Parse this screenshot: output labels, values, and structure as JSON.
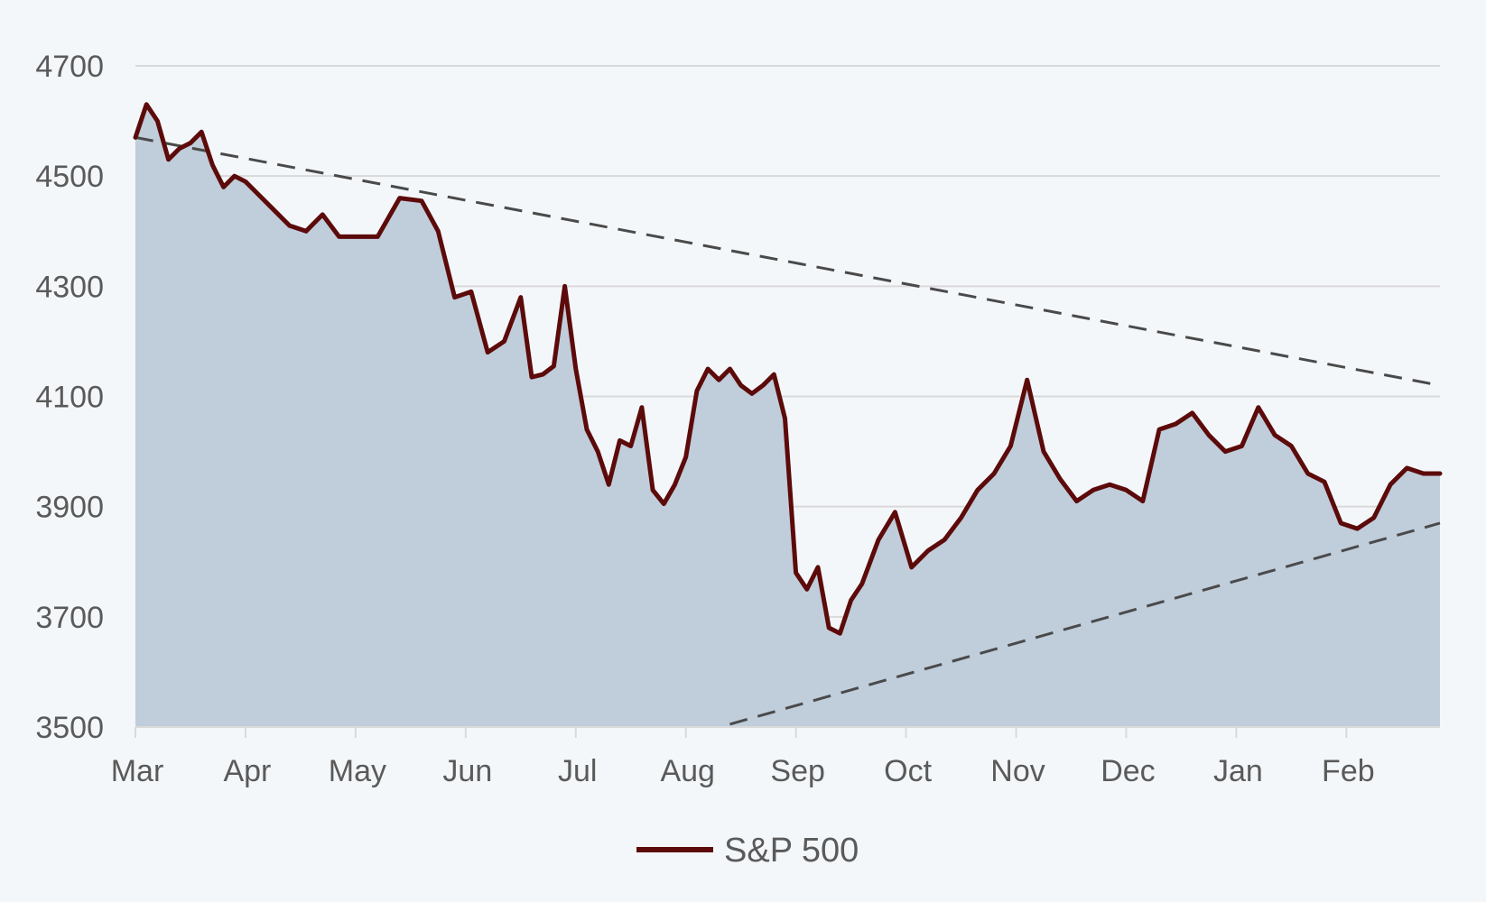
{
  "chart_data": {
    "type": "area",
    "title": "",
    "xlabel": "",
    "ylabel": "",
    "ylim": [
      3500,
      4700
    ],
    "yticks": [
      3500,
      3700,
      3900,
      4100,
      4300,
      4500,
      4700
    ],
    "xticks": [
      "Mar",
      "Apr",
      "May",
      "Jun",
      "Jul",
      "Aug",
      "Sep",
      "Oct",
      "Nov",
      "Dec",
      "Jan",
      "Feb"
    ],
    "grid": true,
    "legend_position": "bottom",
    "colors": {
      "line": "#5c0a0a",
      "fill": "#c0cddb",
      "grid": "#d9d9d9",
      "trend": "#4a4a4a",
      "background": "#f4f7fa"
    },
    "series": [
      {
        "name": "S&P 500",
        "x": [
          0,
          0.1,
          0.2,
          0.3,
          0.4,
          0.5,
          0.6,
          0.7,
          0.8,
          0.9,
          1.0,
          1.1,
          1.25,
          1.4,
          1.55,
          1.7,
          1.85,
          2.0,
          2.2,
          2.4,
          2.6,
          2.75,
          2.9,
          3.05,
          3.2,
          3.35,
          3.5,
          3.6,
          3.7,
          3.8,
          3.9,
          4.0,
          4.1,
          4.2,
          4.3,
          4.4,
          4.5,
          4.6,
          4.7,
          4.8,
          4.9,
          5.0,
          5.1,
          5.2,
          5.3,
          5.4,
          5.5,
          5.6,
          5.7,
          5.8,
          5.9,
          6.0,
          6.1,
          6.2,
          6.3,
          6.4,
          6.5,
          6.6,
          6.75,
          6.9,
          7.05,
          7.2,
          7.35,
          7.5,
          7.65,
          7.8,
          7.95,
          8.1,
          8.25,
          8.4,
          8.55,
          8.7,
          8.85,
          9.0,
          9.15,
          9.3,
          9.45,
          9.6,
          9.75,
          9.9,
          10.05,
          10.2,
          10.35,
          10.5,
          10.65,
          10.8,
          10.95,
          11.1,
          11.25,
          11.4,
          11.55,
          11.7,
          11.85
        ],
        "values": [
          4570,
          4630,
          4600,
          4530,
          4550,
          4560,
          4580,
          4520,
          4480,
          4500,
          4490,
          4470,
          4440,
          4410,
          4400,
          4430,
          4390,
          4390,
          4390,
          4460,
          4455,
          4400,
          4280,
          4290,
          4180,
          4200,
          4280,
          4135,
          4140,
          4155,
          4300,
          4150,
          4040,
          4000,
          3940,
          4020,
          4010,
          4080,
          3930,
          3905,
          3940,
          3990,
          4110,
          4150,
          4130,
          4150,
          4120,
          4105,
          4120,
          4140,
          4060,
          3780,
          3750,
          3790,
          3680,
          3670,
          3730,
          3760,
          3840,
          3890,
          3790,
          3820,
          3840,
          3880,
          3930,
          3960,
          4010,
          4130,
          4000,
          3950,
          3910,
          3930,
          3940,
          3930,
          3910,
          4040,
          4050,
          4070,
          4030,
          4000,
          4010,
          4080,
          4030,
          4010,
          3960,
          3945,
          3870,
          3860,
          3880,
          3940,
          3970,
          3960,
          3960
        ]
      }
    ],
    "trendlines": [
      {
        "from": {
          "x": 0,
          "y": 4570
        },
        "to": {
          "x": 11.85,
          "y": 4120
        }
      },
      {
        "from": {
          "x": 5.4,
          "y": 3505
        },
        "to": {
          "x": 11.85,
          "y": 3870
        }
      }
    ]
  }
}
